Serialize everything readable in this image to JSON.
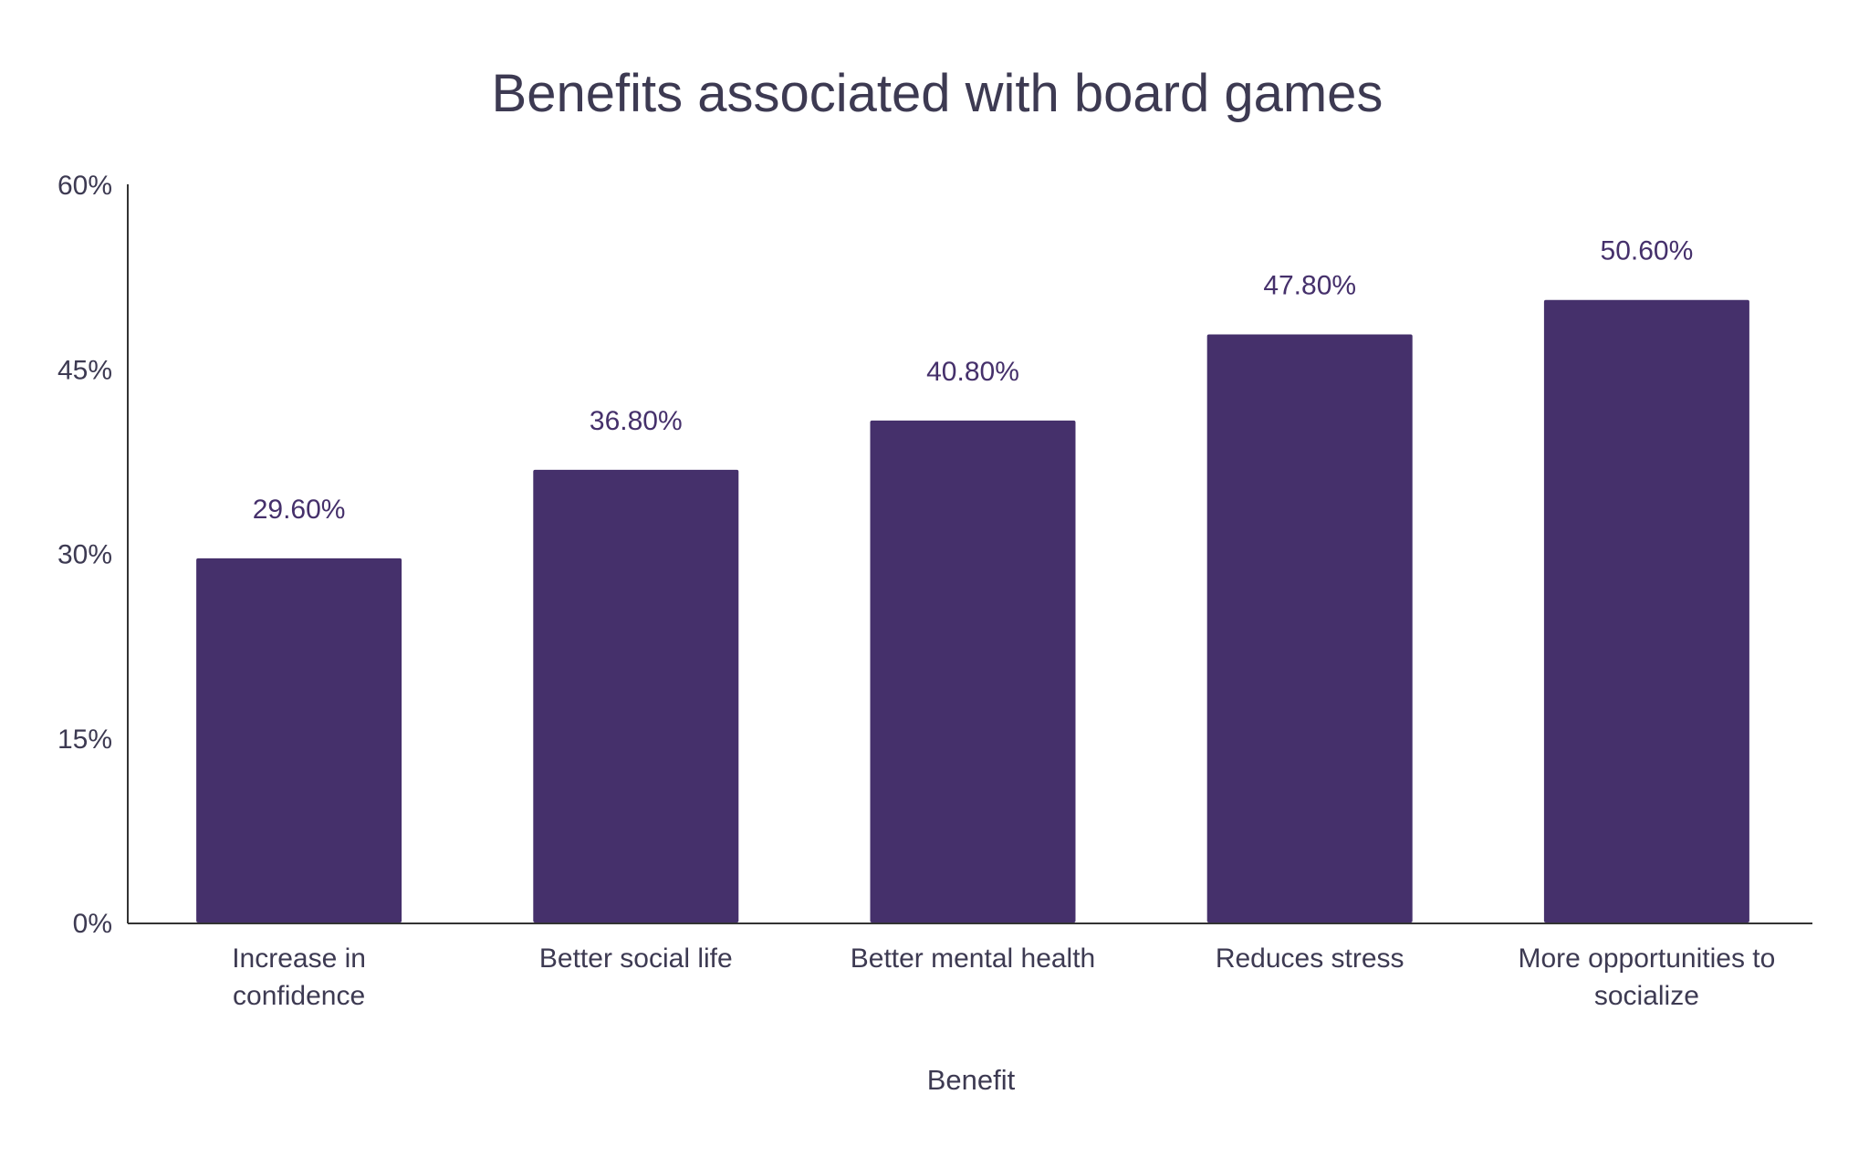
{
  "chart_data": {
    "type": "bar",
    "title": "Benefits associated with board games",
    "xlabel": "Benefit",
    "ylabel": "",
    "ylim": [
      0,
      60
    ],
    "yticks": [
      "0%",
      "15%",
      "30%",
      "45%",
      "60%"
    ],
    "ytick_values": [
      0,
      15,
      30,
      45,
      60
    ],
    "grid": false,
    "legend": "none",
    "categories": [
      "Increase in confidence",
      "Better social life",
      "Better mental health",
      "Reduces stress",
      "More opportunities to socialize"
    ],
    "category_lines": [
      [
        "Increase in",
        "confidence"
      ],
      [
        "Better social life"
      ],
      [
        "Better mental health"
      ],
      [
        "Reduces stress"
      ],
      [
        "More opportunities to",
        "socialize"
      ]
    ],
    "values": [
      29.6,
      36.8,
      40.8,
      47.8,
      50.6
    ],
    "data_labels": [
      "29.60%",
      "36.80%",
      "40.80%",
      "47.80%",
      "50.60%"
    ],
    "colors": {
      "bar": "#45306b",
      "text": "#3d3a52",
      "label": "#45306b",
      "axis": "#333333"
    }
  }
}
